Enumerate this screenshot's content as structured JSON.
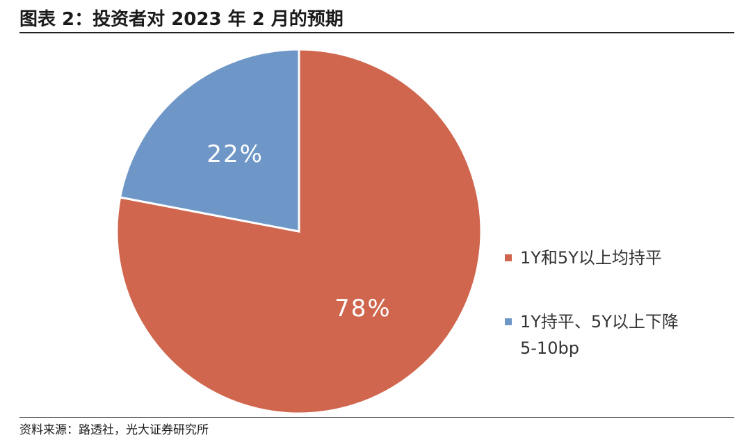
{
  "header": {
    "title": "图表 2：投资者对 2023 年 2 月的预期"
  },
  "footer": {
    "source": "资料来源：路透社，光大证券研究所"
  },
  "chart_data": {
    "type": "pie",
    "title": "图表 2：投资者对 2023 年 2 月的预期",
    "legend_position": "right",
    "slices": [
      {
        "name": "1Y和5Y以上均持平",
        "value": 78,
        "label": "78%",
        "color": "#d0664e"
      },
      {
        "name": "1Y持平、5Y以上下降5-10bp",
        "value": 22,
        "label": "22%",
        "color": "#6e97c8"
      }
    ],
    "legend": [
      {
        "lines": [
          "1Y和5Y以上均持平"
        ],
        "color": "#d0664e"
      },
      {
        "lines": [
          "1Y持平、5Y以上下降",
          "5-10bp"
        ],
        "color": "#6e97c8"
      }
    ]
  }
}
